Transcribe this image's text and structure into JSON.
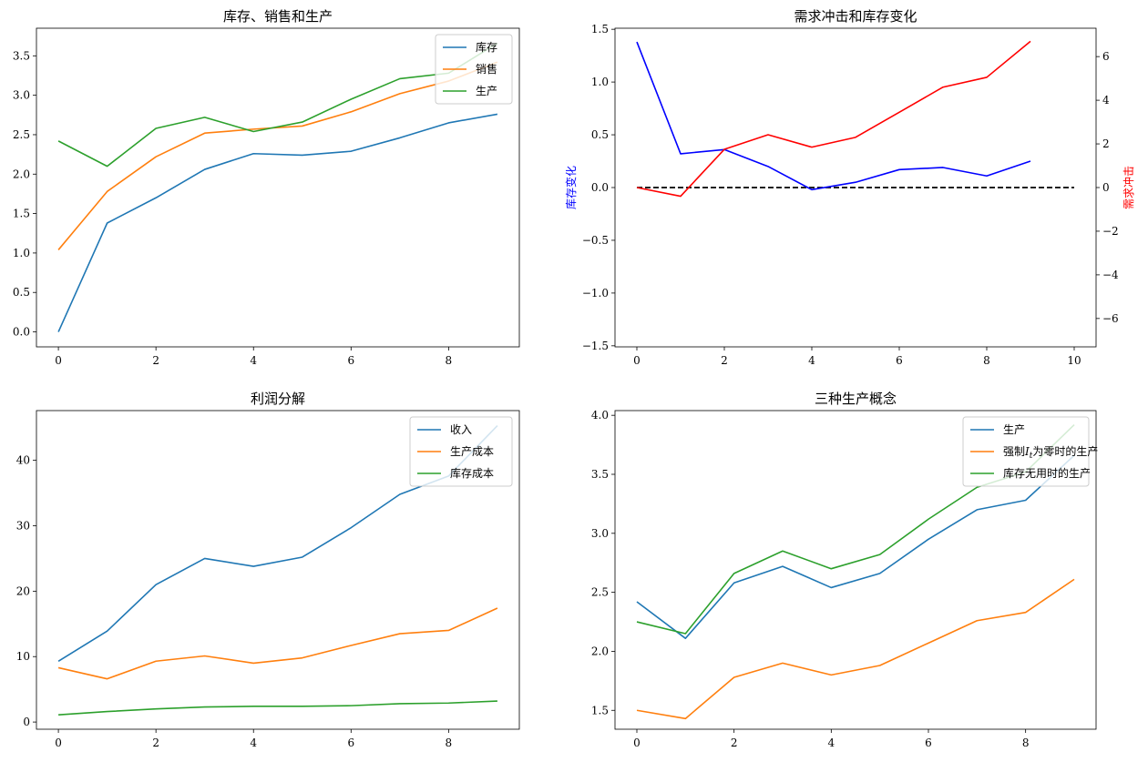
{
  "figure": {
    "background": "#ffffff"
  },
  "chart_data": [
    {
      "type": "line",
      "title": "库存、销售和生产",
      "xlim": [
        -0.45,
        9.45
      ],
      "ylim": [
        -0.19,
        3.85
      ],
      "xticks": [
        0,
        2,
        4,
        6,
        8
      ],
      "yticks": [
        0.0,
        0.5,
        1.0,
        1.5,
        2.0,
        2.5,
        3.0,
        3.5
      ],
      "ytick_decimals": 1,
      "legend": "top-right",
      "series": [
        {
          "name": "库存",
          "color": "#1f77b4",
          "x": [
            0,
            1,
            2,
            3,
            4,
            5,
            6,
            7,
            8,
            9
          ],
          "values": [
            0.0,
            1.38,
            1.7,
            2.06,
            2.26,
            2.24,
            2.29,
            2.46,
            2.65,
            2.76
          ]
        },
        {
          "name": "销售",
          "color": "#ff7f0e",
          "x": [
            0,
            1,
            2,
            3,
            4,
            5,
            6,
            7,
            8,
            9
          ],
          "values": [
            1.04,
            1.78,
            2.22,
            2.52,
            2.57,
            2.61,
            2.79,
            3.02,
            3.18,
            3.42
          ]
        },
        {
          "name": "生产",
          "color": "#2ca02c",
          "x": [
            0,
            1,
            2,
            3,
            4,
            5,
            6,
            7,
            8,
            9
          ],
          "values": [
            2.42,
            2.1,
            2.58,
            2.72,
            2.54,
            2.66,
            2.95,
            3.21,
            3.28,
            3.66
          ]
        }
      ]
    },
    {
      "type": "line",
      "title": "需求冲击和库存变化",
      "xlim": [
        -0.5,
        10.5
      ],
      "ylim": [
        -1.51,
        1.51
      ],
      "y2lim": [
        -7.3,
        7.3
      ],
      "xticks": [
        0,
        2,
        4,
        6,
        8,
        10
      ],
      "yticks": [
        -1.5,
        -1.0,
        -0.5,
        0.0,
        0.5,
        1.0,
        1.5
      ],
      "ytick_decimals": 1,
      "y2ticks": [
        -6,
        -4,
        -2,
        0,
        2,
        4,
        6
      ],
      "y2tick_decimals": 0,
      "ylabel": "库存变化",
      "ylabel_color": "#0000ff",
      "y2label": "需求冲击",
      "y2label_color": "#ff0000",
      "hline": {
        "y": 0,
        "x": [
          0,
          10
        ],
        "color": "#000000",
        "style": "dashed"
      },
      "series": [
        {
          "axis": "left",
          "color": "#0000ff",
          "x": [
            0,
            1,
            2,
            3,
            4,
            5,
            6,
            7,
            8,
            9
          ],
          "values": [
            1.38,
            0.32,
            0.36,
            0.2,
            -0.02,
            0.05,
            0.17,
            0.19,
            0.11,
            0.25
          ]
        },
        {
          "axis": "right",
          "color": "#ff0000",
          "x": [
            0,
            1,
            2,
            3,
            4,
            5,
            6,
            7,
            8,
            9
          ],
          "values": [
            0.0,
            -0.4,
            1.75,
            2.42,
            1.85,
            2.3,
            3.45,
            4.6,
            5.05,
            6.7
          ]
        }
      ]
    },
    {
      "type": "line",
      "title": "利润分解",
      "xlim": [
        -0.45,
        9.45
      ],
      "ylim": [
        -1.1,
        47.6
      ],
      "xticks": [
        0,
        2,
        4,
        6,
        8
      ],
      "yticks": [
        0,
        10,
        20,
        30,
        40
      ],
      "ytick_decimals": 0,
      "legend": "top-right",
      "series": [
        {
          "name": "收入",
          "color": "#1f77b4",
          "x": [
            0,
            1,
            2,
            3,
            4,
            5,
            6,
            7,
            8,
            9
          ],
          "values": [
            9.3,
            13.9,
            21.0,
            25.0,
            23.8,
            25.2,
            29.7,
            34.8,
            37.6,
            45.3
          ]
        },
        {
          "name": "生产成本",
          "color": "#ff7f0e",
          "x": [
            0,
            1,
            2,
            3,
            4,
            5,
            6,
            7,
            8,
            9
          ],
          "values": [
            8.3,
            6.6,
            9.3,
            10.1,
            9.0,
            9.8,
            11.7,
            13.5,
            14.0,
            17.4
          ]
        },
        {
          "name": "库存成本",
          "color": "#2ca02c",
          "x": [
            0,
            1,
            2,
            3,
            4,
            5,
            6,
            7,
            8,
            9
          ],
          "values": [
            1.1,
            1.6,
            2.0,
            2.3,
            2.4,
            2.4,
            2.5,
            2.8,
            2.9,
            3.2
          ]
        }
      ]
    },
    {
      "type": "line",
      "title": "三种生产概念",
      "xlim": [
        -0.45,
        9.45
      ],
      "ylim": [
        1.34,
        4.04
      ],
      "xticks": [
        0,
        2,
        4,
        6,
        8
      ],
      "yticks": [
        1.5,
        2.0,
        2.5,
        3.0,
        3.5,
        4.0
      ],
      "ytick_decimals": 1,
      "legend": "top-right",
      "series": [
        {
          "name": "生产",
          "color": "#1f77b4",
          "x": [
            0,
            1,
            2,
            3,
            4,
            5,
            6,
            7,
            8,
            9
          ],
          "values": [
            2.42,
            2.11,
            2.58,
            2.72,
            2.54,
            2.66,
            2.95,
            3.2,
            3.28,
            3.66
          ]
        },
        {
          "name_prefix": "强制",
          "name_var": "I",
          "name_sub": "t",
          "name_suffix": "为零时的生产",
          "color": "#ff7f0e",
          "x": [
            0,
            1,
            2,
            3,
            4,
            5,
            6,
            7,
            8,
            9
          ],
          "values": [
            1.5,
            1.43,
            1.78,
            1.9,
            1.8,
            1.88,
            2.07,
            2.26,
            2.33,
            2.61
          ]
        },
        {
          "name": "库存无用时的生产",
          "color": "#2ca02c",
          "x": [
            0,
            1,
            2,
            3,
            4,
            5,
            6,
            7,
            8,
            9
          ],
          "values": [
            2.25,
            2.15,
            2.66,
            2.85,
            2.7,
            2.82,
            3.12,
            3.39,
            3.52,
            3.92
          ]
        }
      ]
    }
  ]
}
